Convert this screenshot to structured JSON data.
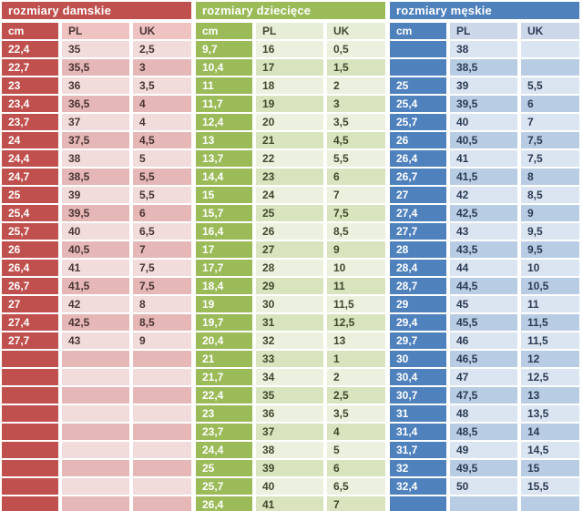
{
  "chart_data": [
    {
      "type": "table",
      "id": "damskie",
      "title": "rozmiary damskie",
      "columns": [
        "cm",
        "PL",
        "UK"
      ],
      "colors": {
        "accent": "#c0504d",
        "row_light": "#f2dcdb",
        "row_dark": "#e5b8b7",
        "header_tint": "#eec3c1",
        "text": "#4a3433"
      },
      "rows": [
        [
          "22,4",
          "35",
          "2,5"
        ],
        [
          "22,7",
          "35,5",
          "3"
        ],
        [
          "23",
          "36",
          "3,5"
        ],
        [
          "23,4",
          "36,5",
          "4"
        ],
        [
          "23,7",
          "37",
          "4"
        ],
        [
          "24",
          "37,5",
          "4,5"
        ],
        [
          "24,4",
          "38",
          "5"
        ],
        [
          "24,7",
          "38,5",
          "5,5"
        ],
        [
          "25",
          "39",
          "5,5"
        ],
        [
          "25,4",
          "39,5",
          "6"
        ],
        [
          "25,7",
          "40",
          "6,5"
        ],
        [
          "26",
          "40,5",
          "7"
        ],
        [
          "26,4",
          "41",
          "7,5"
        ],
        [
          "26,7",
          "41,5",
          "7,5"
        ],
        [
          "27",
          "42",
          "8"
        ],
        [
          "27,4",
          "42,5",
          "8,5"
        ],
        [
          "27,7",
          "43",
          "9"
        ],
        [
          "",
          "",
          ""
        ],
        [
          "",
          "",
          ""
        ],
        [
          "",
          "",
          ""
        ],
        [
          "",
          "",
          ""
        ],
        [
          "",
          "",
          ""
        ],
        [
          "",
          "",
          ""
        ],
        [
          "",
          "",
          ""
        ],
        [
          "",
          "",
          ""
        ],
        [
          "",
          "",
          ""
        ]
      ]
    },
    {
      "type": "table",
      "id": "dzieciece",
      "title": "rozmiary dziecięce",
      "columns": [
        "cm",
        "PL",
        "UK"
      ],
      "colors": {
        "accent": "#9bbb59",
        "row_light": "#ebf1de",
        "row_dark": "#d7e4bd",
        "header_tint": "#e7eed7",
        "text": "#41492e"
      },
      "rows": [
        [
          "9,7",
          "16",
          "0,5"
        ],
        [
          "10,4",
          "17",
          "1,5"
        ],
        [
          "11",
          "18",
          "2"
        ],
        [
          "11,7",
          "19",
          "3"
        ],
        [
          "12,4",
          "20",
          "3,5"
        ],
        [
          "13",
          "21",
          "4,5"
        ],
        [
          "13,7",
          "22",
          "5,5"
        ],
        [
          "14,4",
          "23",
          "6"
        ],
        [
          "15",
          "24",
          "7"
        ],
        [
          "15,7",
          "25",
          "7,5"
        ],
        [
          "16,4",
          "26",
          "8,5"
        ],
        [
          "17",
          "27",
          "9"
        ],
        [
          "17,7",
          "28",
          "10"
        ],
        [
          "18,4",
          "29",
          "11"
        ],
        [
          "19",
          "30",
          "11,5"
        ],
        [
          "19,7",
          "31",
          "12,5"
        ],
        [
          "20,4",
          "32",
          "13"
        ],
        [
          "21",
          "33",
          "1"
        ],
        [
          "21,7",
          "34",
          "2"
        ],
        [
          "22,4",
          "35",
          "2,5"
        ],
        [
          "23",
          "36",
          "3,5"
        ],
        [
          "23,7",
          "37",
          "4"
        ],
        [
          "24,4",
          "38",
          "5"
        ],
        [
          "25",
          "39",
          "6"
        ],
        [
          "25,7",
          "40",
          "6,5"
        ],
        [
          "26,4",
          "41",
          "7"
        ]
      ]
    },
    {
      "type": "table",
      "id": "meskie",
      "title": "rozmiary męskie",
      "columns": [
        "cm",
        "PL",
        "UK"
      ],
      "colors": {
        "accent": "#4f81bd",
        "row_light": "#dbe5f1",
        "row_dark": "#b8cce4",
        "header_tint": "#ccd8ea",
        "text": "#2b3b55"
      },
      "rows": [
        [
          "",
          "38",
          ""
        ],
        [
          "",
          "38,5",
          ""
        ],
        [
          "25",
          "39",
          "5,5"
        ],
        [
          "25,4",
          "39,5",
          "6"
        ],
        [
          "25,7",
          "40",
          "7"
        ],
        [
          "26",
          "40,5",
          "7,5"
        ],
        [
          "26,4",
          "41",
          "7,5"
        ],
        [
          "26,7",
          "41,5",
          "8"
        ],
        [
          "27",
          "42",
          "8,5"
        ],
        [
          "27,4",
          "42,5",
          "9"
        ],
        [
          "27,7",
          "43",
          "9,5"
        ],
        [
          "28",
          "43,5",
          "9,5"
        ],
        [
          "28,4",
          "44",
          "10"
        ],
        [
          "28,7",
          "44,5",
          "10,5"
        ],
        [
          "29",
          "45",
          "11"
        ],
        [
          "29,4",
          "45,5",
          "11,5"
        ],
        [
          "29,7",
          "46",
          "11,5"
        ],
        [
          "30",
          "46,5",
          "12"
        ],
        [
          "30,4",
          "47",
          "12,5"
        ],
        [
          "30,7",
          "47,5",
          "13"
        ],
        [
          "31",
          "48",
          "13,5"
        ],
        [
          "31,4",
          "48,5",
          "14"
        ],
        [
          "31,7",
          "49",
          "14,5"
        ],
        [
          "32",
          "49,5",
          "15"
        ],
        [
          "32,4",
          "50",
          "15,5"
        ],
        [
          "",
          "",
          ""
        ]
      ]
    }
  ]
}
